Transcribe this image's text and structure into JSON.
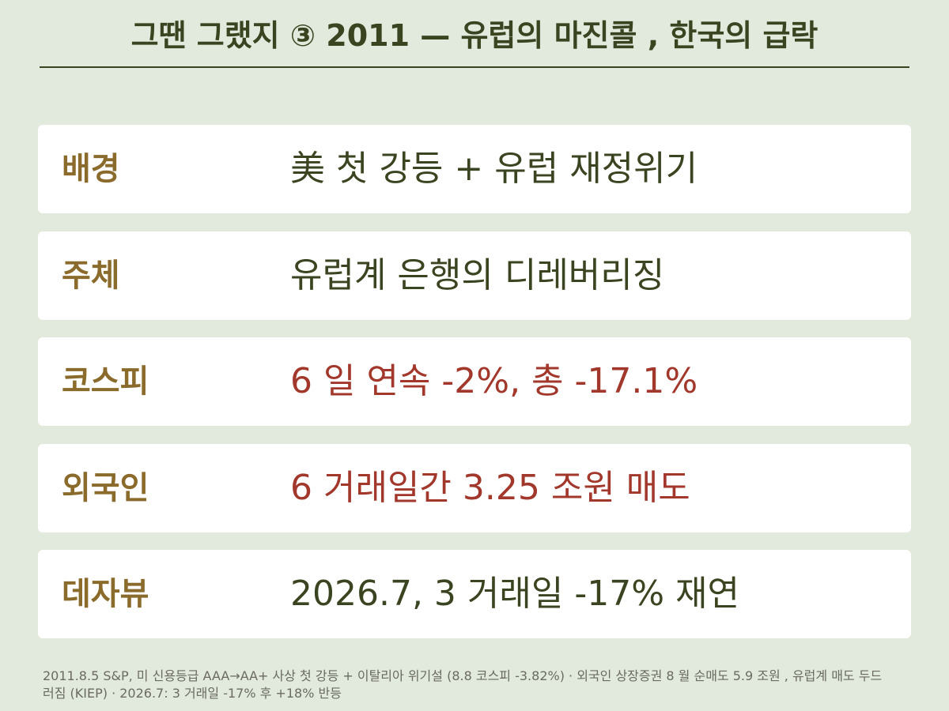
{
  "header": {
    "title": "그땐 그랬지 ③  2011 —  유럽의 마진콜 ,  한국의 급락"
  },
  "rows": [
    {
      "label": "배경",
      "value": "美 첫 강등  +  유럽 재정위기",
      "color": "#3b4421"
    },
    {
      "label": "주체",
      "value": "유럽계 은행의 디레버리징",
      "color": "#3b4421"
    },
    {
      "label": "코스피",
      "value": "6 일 연속  -2%,  총  -17.1%",
      "color": "#a2372b"
    },
    {
      "label": "외국인",
      "value": "6 거래일간  3.25 조원 매도",
      "color": "#a2372b"
    },
    {
      "label": "데자뷰",
      "value": "2026.7, 3 거래일  -17%  재연",
      "color": "#3b4421"
    }
  ],
  "footnote": "2011.8.5 S&P,  미 신용등급  AAA→AA+  사상 첫 강등  +  이탈리아 위기설 (8.8  코스피  -3.82%) ·  외국인 상장증권  8 월 순매도  5.9 조원 ,  유럽계 매도 두드러짐 (KIEP) · 2026.7: 3 거래일  -17%  후  +18%  반등"
}
